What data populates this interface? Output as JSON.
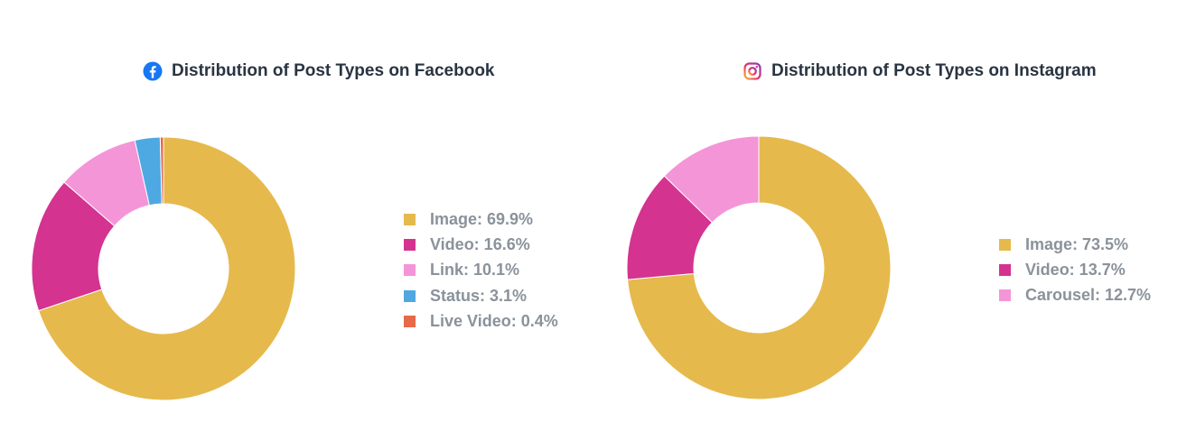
{
  "chart_data": [
    {
      "type": "pie",
      "title": "Distribution of Post Types on Facebook",
      "platform_icon": "facebook-icon",
      "categories": [
        "Image",
        "Video",
        "Link",
        "Status",
        "Live Video"
      ],
      "values": [
        69.9,
        16.6,
        10.1,
        3.1,
        0.4
      ],
      "colors": [
        "#e6b94c",
        "#d43390",
        "#f495d7",
        "#4ea8e2",
        "#e8684a"
      ],
      "legend_labels": [
        "Image: 69.9%",
        "Video: 16.6%",
        "Link: 10.1%",
        "Status: 3.1%",
        "Live Video: 0.4%"
      ],
      "legend_position": "right",
      "donut": true
    },
    {
      "type": "pie",
      "title": "Distribution of Post Types on Instagram",
      "platform_icon": "instagram-icon",
      "categories": [
        "Image",
        "Video",
        "Carousel"
      ],
      "values": [
        73.5,
        13.7,
        12.7
      ],
      "colors": [
        "#e6b94c",
        "#d43390",
        "#f495d7"
      ],
      "legend_labels": [
        "Image: 73.5%",
        "Video: 13.7%",
        "Carousel: 12.7%"
      ],
      "legend_position": "right",
      "donut": true
    }
  ]
}
